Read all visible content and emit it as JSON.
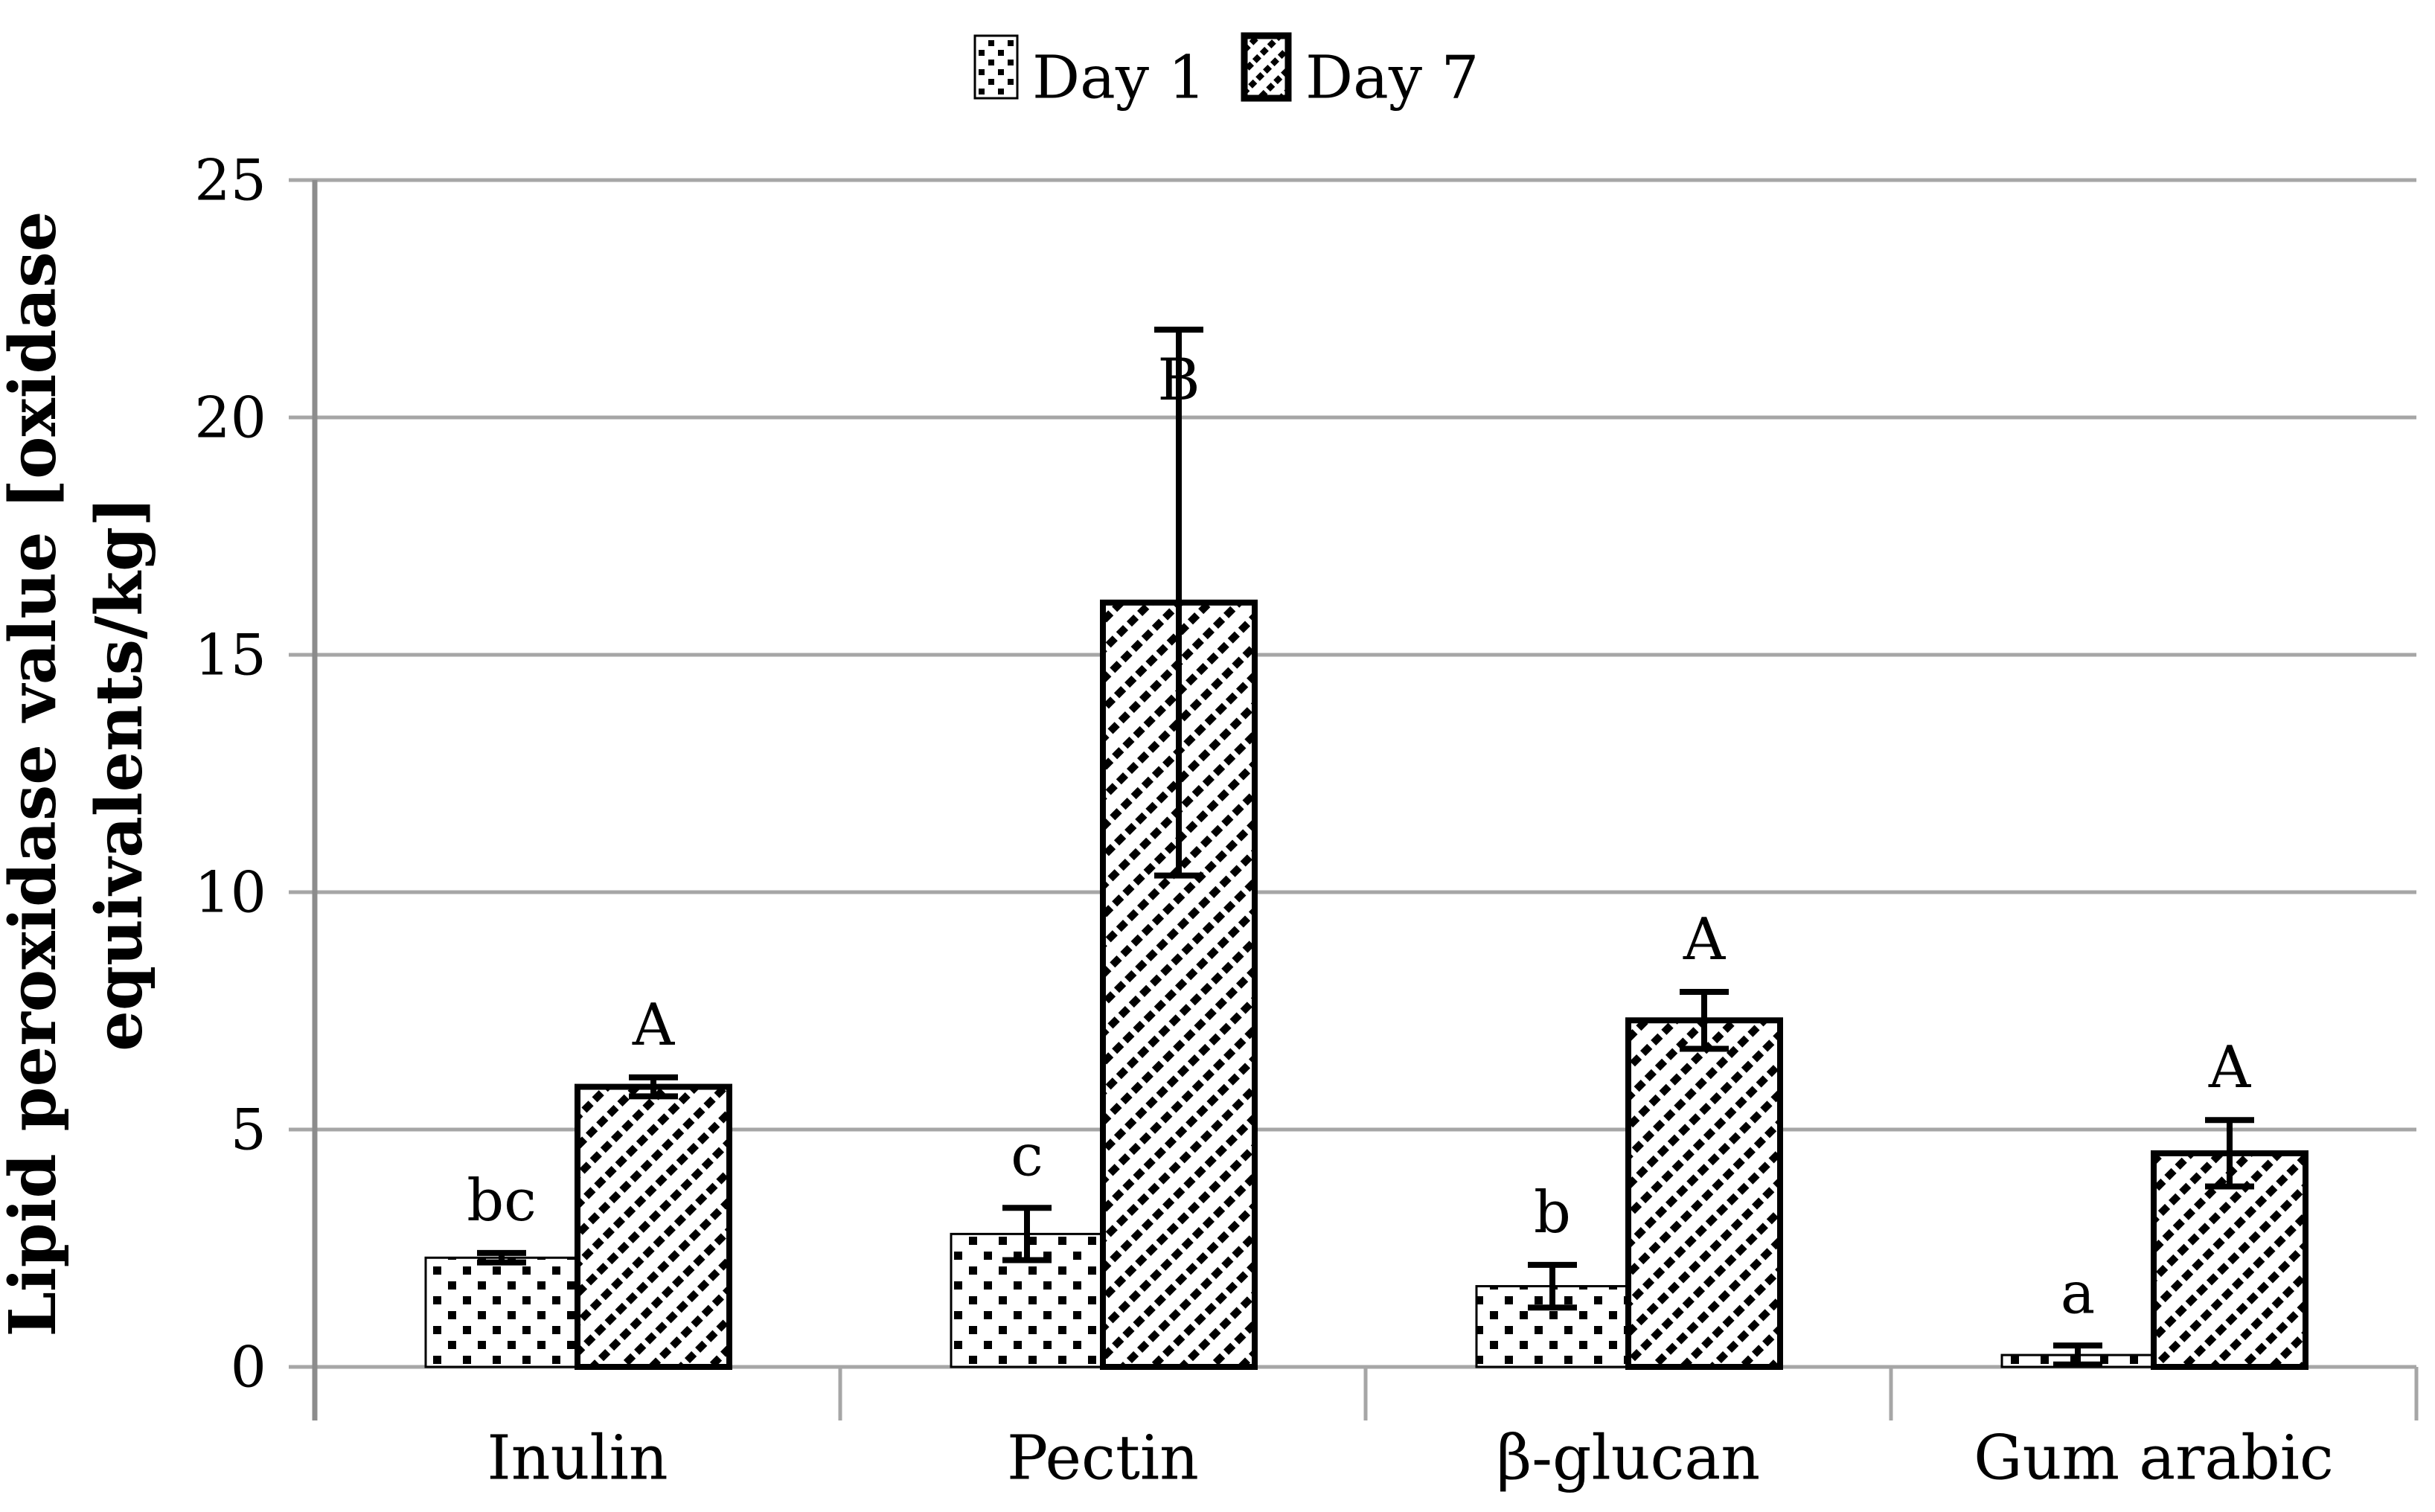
{
  "legend": {
    "day1_label": "Day 1",
    "day7_label": "Day 7"
  },
  "y_axis": {
    "title_line1": "Lipid peroxidase value [oxidase",
    "title_line2": "equivalents/kg]",
    "tick_labels": [
      "0",
      "5",
      "10",
      "15",
      "20",
      "25"
    ]
  },
  "chart_data": {
    "type": "bar",
    "title": "",
    "xlabel": "",
    "ylabel": "Lipid peroxidase value [oxidase equivalents/kg]",
    "ylim": [
      0,
      25
    ],
    "ytick_step": 5,
    "grid": true,
    "legend_position": "top-center",
    "categories": [
      "Inulin",
      "Pectin",
      "β-glucan",
      "Gum arabic"
    ],
    "series": [
      {
        "name": "Day 1",
        "pattern": "dots",
        "values": [
          2.3,
          2.8,
          1.7,
          0.25
        ],
        "errors": [
          0.1,
          0.55,
          0.45,
          0.2
        ],
        "letters": [
          "bc",
          "c",
          "b",
          "a"
        ],
        "letter_positions": [
          "above",
          "above",
          "above",
          "above"
        ]
      },
      {
        "name": "Day 7",
        "pattern": "diagonal-hatch",
        "values": [
          5.9,
          16.1,
          7.3,
          4.5
        ],
        "errors": [
          0.2,
          5.75,
          0.6,
          0.7
        ],
        "letters": [
          "A",
          "B",
          "A",
          "A"
        ],
        "letter_positions": [
          "above",
          "below-cap",
          "above",
          "above"
        ]
      }
    ],
    "colors": {
      "bar_fill": "#ffffff",
      "bar_stroke": "#000000",
      "gridline": "#a6a6a6",
      "axis": "#8c8c8c",
      "text": "#000000"
    }
  }
}
